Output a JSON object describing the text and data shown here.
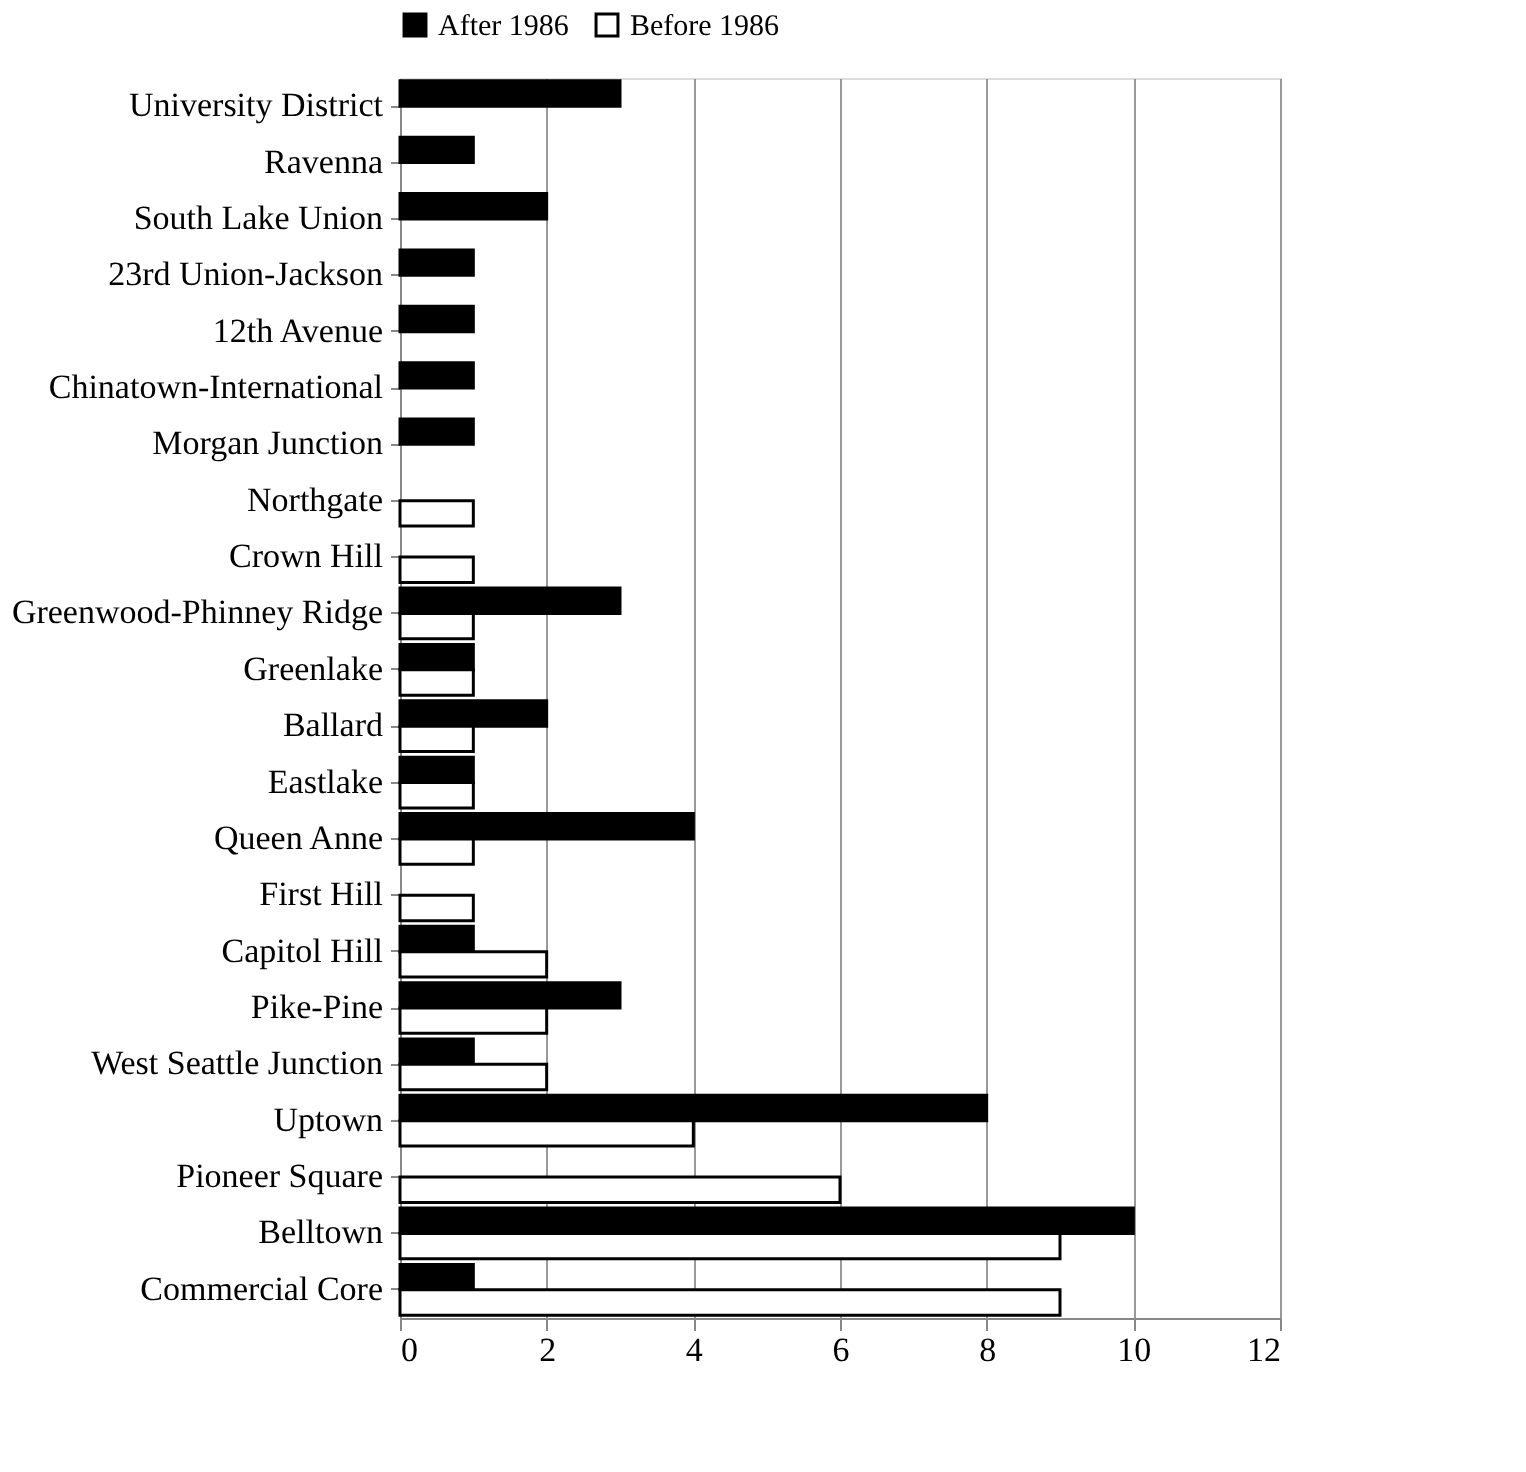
{
  "chart_data": {
    "type": "bar",
    "orientation": "horizontal",
    "categories": [
      "University District",
      "Ravenna",
      "South Lake Union",
      "23rd Union-Jackson",
      "12th Avenue",
      "Chinatown-International",
      "Morgan Junction",
      "Northgate",
      "Crown Hill",
      "Greenwood-Phinney Ridge",
      "Greenlake",
      "Ballard",
      "Eastlake",
      "Queen Anne",
      "First Hill",
      "Capitol Hill",
      "Pike-Pine",
      "West Seattle Junction",
      "Uptown",
      "Pioneer Square",
      "Belltown",
      "Commercial Core"
    ],
    "series": [
      {
        "name": "After 1986",
        "color": "#000000",
        "values": [
          3,
          1,
          2,
          1,
          1,
          1,
          1,
          0,
          0,
          3,
          1,
          2,
          1,
          4,
          0,
          1,
          3,
          1,
          8,
          0,
          10,
          1
        ]
      },
      {
        "name": "Before 1986",
        "color": "#ffffff",
        "values": [
          0,
          0,
          0,
          0,
          0,
          0,
          0,
          1,
          1,
          1,
          1,
          1,
          1,
          1,
          1,
          2,
          2,
          2,
          4,
          6,
          9,
          9
        ]
      }
    ],
    "xlim": [
      0,
      12
    ],
    "xticks": [
      0,
      2,
      4,
      6,
      8,
      10,
      12
    ],
    "grid": "x",
    "legend": "top"
  }
}
